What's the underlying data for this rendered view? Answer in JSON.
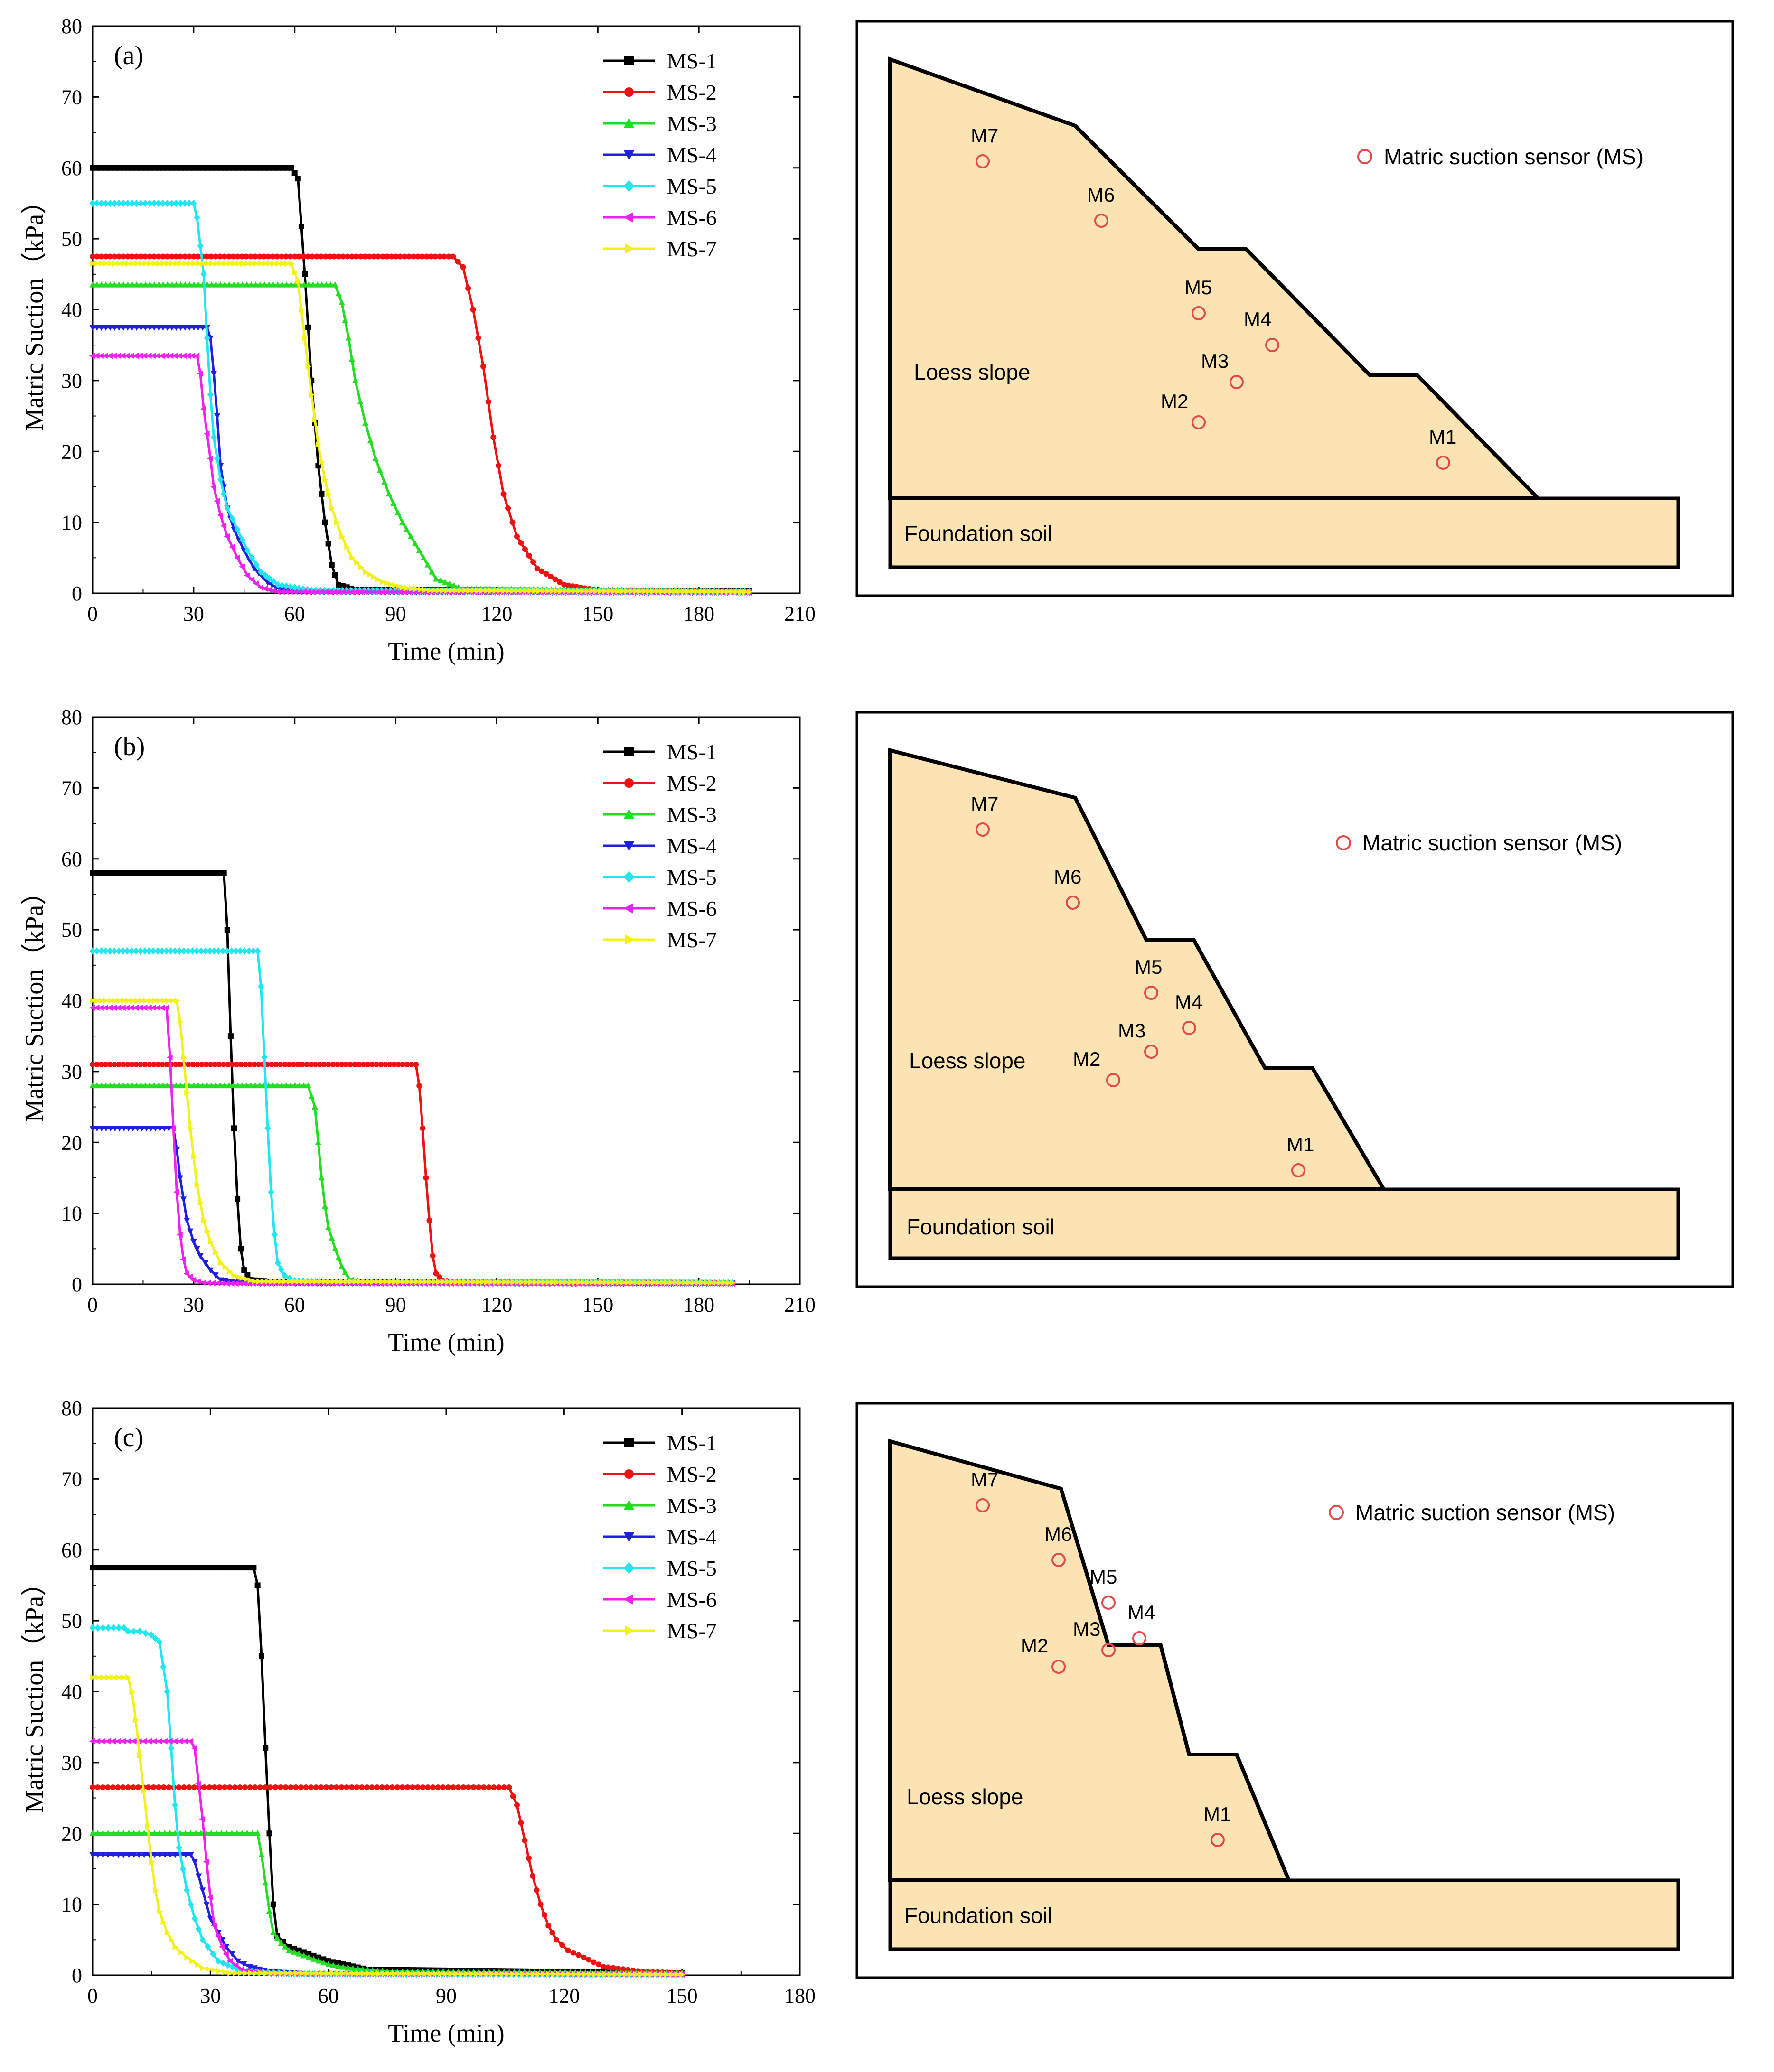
{
  "series_meta": [
    {
      "name": "MS-1",
      "color": "#000000",
      "marker": "square"
    },
    {
      "name": "MS-2",
      "color": "#ee1111",
      "marker": "circle"
    },
    {
      "name": "MS-3",
      "color": "#22dd22",
      "marker": "triangle-up"
    },
    {
      "name": "MS-4",
      "color": "#1f1fe0",
      "marker": "triangle-down"
    },
    {
      "name": "MS-5",
      "color": "#1fe6f0",
      "marker": "diamond"
    },
    {
      "name": "MS-6",
      "color": "#ee22ee",
      "marker": "left-triangle"
    },
    {
      "name": "MS-7",
      "color": "#f2f21a",
      "marker": "right-triangle"
    }
  ],
  "chart_data": [
    {
      "type": "line",
      "panel_label": "(a)",
      "xlabel": "Time (min)",
      "ylabel": "Matric Suction（kPa）",
      "xlim": [
        0,
        210
      ],
      "ylim": [
        0,
        80
      ],
      "xticks": [
        0,
        30,
        60,
        90,
        120,
        150,
        180,
        210
      ],
      "yticks": [
        0,
        10,
        20,
        30,
        40,
        50,
        60,
        70,
        80
      ],
      "legend": "top-right",
      "series": [
        {
          "name": "MS-1",
          "x": [
            0,
            59,
            61,
            63,
            65,
            67,
            69,
            71,
            73,
            78,
            195
          ],
          "values": [
            60.0,
            60.0,
            58.5,
            45,
            30,
            18,
            10,
            4,
            1.2,
            0.5,
            0.3
          ]
        },
        {
          "name": "MS-2",
          "x": [
            0,
            107,
            110,
            113,
            116,
            119,
            122,
            126,
            132,
            140,
            150,
            195
          ],
          "values": [
            47.5,
            47.5,
            46,
            40,
            32,
            22,
            14,
            8,
            3.5,
            1.2,
            0.4,
            0.2
          ]
        },
        {
          "name": "MS-3",
          "x": [
            0,
            72,
            74,
            76,
            78,
            81,
            84,
            88,
            92,
            97,
            102,
            110,
            195
          ],
          "values": [
            43.5,
            43.5,
            41,
            36,
            30,
            24,
            19,
            14,
            10,
            6,
            2,
            0.6,
            0.3
          ]
        },
        {
          "name": "MS-4",
          "x": [
            0,
            34,
            35,
            36,
            37,
            38,
            40,
            42,
            45,
            48,
            52,
            56,
            65,
            195
          ],
          "values": [
            37.5,
            37.5,
            36,
            31,
            25,
            18,
            12,
            9,
            6,
            3.5,
            1.5,
            0.5,
            0.2,
            0.1
          ]
        },
        {
          "name": "MS-5",
          "x": [
            0,
            30,
            31,
            33,
            34,
            35,
            36,
            38,
            40,
            43,
            46,
            50,
            55,
            65,
            195
          ],
          "values": [
            55.0,
            55.0,
            53,
            45,
            36,
            28,
            22,
            16,
            12,
            9,
            6,
            3,
            1.2,
            0.4,
            0.2
          ]
        },
        {
          "name": "MS-6",
          "x": [
            0,
            31,
            32,
            33,
            35,
            36,
            38,
            40,
            43,
            46,
            50,
            55,
            195
          ],
          "values": [
            33.5,
            33.5,
            31,
            26,
            19,
            15,
            11,
            8,
            5,
            2.5,
            0.8,
            0.2,
            0.1
          ]
        },
        {
          "name": "MS-7",
          "x": [
            0,
            59,
            61,
            63,
            65,
            67,
            69,
            71,
            74,
            77,
            81,
            86,
            92,
            100,
            195
          ],
          "values": [
            46.5,
            46.5,
            44,
            36,
            28,
            21,
            16,
            12,
            8,
            5,
            3,
            1.6,
            0.8,
            0.4,
            0.2
          ]
        }
      ]
    },
    {
      "type": "line",
      "panel_label": "(b)",
      "xlabel": "Time (min)",
      "ylabel": "Matric Suction（kPa）",
      "xlim": [
        0,
        210
      ],
      "ylim": [
        0,
        80
      ],
      "xticks": [
        0,
        30,
        60,
        90,
        120,
        150,
        180,
        210
      ],
      "yticks": [
        0,
        10,
        20,
        30,
        40,
        50,
        60,
        70,
        80
      ],
      "legend": "top-right",
      "series": [
        {
          "name": "MS-1",
          "x": [
            0,
            39,
            40,
            41,
            42,
            43,
            44,
            45,
            47,
            55,
            190
          ],
          "values": [
            58.0,
            58.0,
            50,
            35,
            22,
            12,
            5,
            2,
            0.6,
            0.3,
            0.2
          ]
        },
        {
          "name": "MS-2",
          "x": [
            0,
            96,
            97,
            98,
            99,
            100,
            101,
            102,
            104,
            110,
            190
          ],
          "values": [
            31.0,
            31.0,
            28,
            22,
            15,
            9,
            4,
            1.5,
            0.5,
            0.3,
            0.2
          ]
        },
        {
          "name": "MS-3",
          "x": [
            0,
            64,
            66,
            67,
            68,
            69,
            70,
            72,
            74,
            76,
            80,
            190
          ],
          "values": [
            28.0,
            28.0,
            25,
            20,
            15,
            11,
            8,
            5,
            2.5,
            0.8,
            0.3,
            0.2
          ]
        },
        {
          "name": "MS-4",
          "x": [
            0,
            24,
            25,
            26,
            27,
            28,
            30,
            32,
            35,
            38,
            45,
            190
          ],
          "values": [
            22.0,
            22.0,
            19,
            15,
            12,
            9,
            6,
            4,
            2,
            0.6,
            0.2,
            0.1
          ]
        },
        {
          "name": "MS-5",
          "x": [
            0,
            49,
            50,
            51,
            52,
            53,
            54,
            55,
            57,
            60,
            70,
            190
          ],
          "values": [
            47.0,
            47.0,
            42,
            32,
            22,
            13,
            7,
            3,
            1.2,
            0.5,
            0.3,
            0.2
          ]
        },
        {
          "name": "MS-6",
          "x": [
            0,
            22,
            23,
            24,
            25,
            26,
            27,
            28,
            30,
            33,
            40,
            190
          ],
          "values": [
            39.0,
            39.0,
            32,
            22,
            13,
            7,
            3.5,
            1.5,
            0.6,
            0.2,
            0.1,
            0.1
          ]
        },
        {
          "name": "MS-7",
          "x": [
            0,
            25,
            26,
            27,
            28,
            29,
            30,
            31,
            33,
            35,
            38,
            42,
            48,
            190
          ],
          "values": [
            40.0,
            40.0,
            37,
            32,
            27,
            22,
            18,
            14,
            9,
            6,
            3,
            1.2,
            0.4,
            0.2
          ]
        }
      ]
    },
    {
      "type": "line",
      "panel_label": "(c)",
      "xlabel": "Time (min)",
      "ylabel": "Matric Suction（kPa）",
      "xlim": [
        0,
        180
      ],
      "ylim": [
        0,
        80
      ],
      "xticks": [
        0,
        30,
        60,
        90,
        120,
        150,
        180
      ],
      "yticks": [
        0,
        10,
        20,
        30,
        40,
        50,
        60,
        70,
        80
      ],
      "legend": "top-right",
      "series": [
        {
          "name": "MS-1",
          "x": [
            0,
            41,
            42,
            43,
            44,
            45,
            46,
            47,
            50,
            55,
            60,
            70,
            150
          ],
          "values": [
            57.5,
            57.5,
            55,
            45,
            32,
            20,
            10,
            5.5,
            4,
            3,
            2,
            0.8,
            0.3
          ]
        },
        {
          "name": "MS-2",
          "x": [
            0,
            106,
            108,
            110,
            112,
            114,
            116,
            118,
            121,
            125,
            130,
            140,
            150
          ],
          "values": [
            26.5,
            26.5,
            24,
            19,
            14,
            10,
            7,
            5,
            3.5,
            2.5,
            1.2,
            0.5,
            0.3
          ]
        },
        {
          "name": "MS-3",
          "x": [
            0,
            42,
            43,
            44,
            45,
            46,
            48,
            50,
            55,
            60,
            65,
            75,
            150
          ],
          "values": [
            20.0,
            20.0,
            17,
            13,
            9,
            6,
            4.5,
            3.5,
            2.5,
            1.5,
            1,
            0.5,
            0.3
          ]
        },
        {
          "name": "MS-4",
          "x": [
            0,
            25,
            26,
            27,
            28,
            29,
            30,
            32,
            34,
            37,
            40,
            45,
            55,
            150
          ],
          "values": [
            17.0,
            17.0,
            16,
            14,
            12,
            10,
            8,
            6,
            4,
            2,
            1.2,
            0.5,
            0.2,
            0.1
          ]
        },
        {
          "name": "MS-5",
          "x": [
            0,
            8,
            9,
            12,
            15,
            17,
            19,
            20,
            21,
            22,
            24,
            26,
            28,
            32,
            38,
            50,
            150
          ],
          "values": [
            49.0,
            49.0,
            48.5,
            48.5,
            48,
            47,
            40,
            32,
            24,
            18,
            12,
            8,
            5,
            2,
            0.6,
            0.2,
            0.1
          ]
        },
        {
          "name": "MS-6",
          "x": [
            0,
            25,
            26,
            27,
            28,
            29,
            30,
            31,
            33,
            35,
            38,
            45,
            150
          ],
          "values": [
            33.0,
            33.0,
            32,
            27,
            22,
            16,
            11,
            7,
            4,
            2,
            0.8,
            0.2,
            0.1
          ]
        },
        {
          "name": "MS-7",
          "x": [
            0,
            9,
            10,
            11,
            12,
            13,
            14,
            15,
            16,
            17,
            19,
            21,
            24,
            28,
            35,
            150
          ],
          "values": [
            42.0,
            42.0,
            40,
            36,
            31,
            26,
            21,
            16,
            12,
            9,
            6,
            4,
            2.5,
            1,
            0.3,
            0.1
          ]
        }
      ]
    }
  ],
  "slopes": [
    {
      "legend_label": "Matric suction sensor (MS)",
      "slope_label": "Loess slope",
      "foundation_label": "Foundation soil",
      "sensors": [
        {
          "name": "M7"
        },
        {
          "name": "M6"
        },
        {
          "name": "M5"
        },
        {
          "name": "M4"
        },
        {
          "name": "M3"
        },
        {
          "name": "M2"
        },
        {
          "name": "M1"
        }
      ]
    },
    {
      "legend_label": "Matric suction sensor (MS)",
      "slope_label": "Loess slope",
      "foundation_label": "Foundation soil",
      "sensors": [
        {
          "name": "M7"
        },
        {
          "name": "M6"
        },
        {
          "name": "M5"
        },
        {
          "name": "M4"
        },
        {
          "name": "M3"
        },
        {
          "name": "M2"
        },
        {
          "name": "M1"
        }
      ]
    },
    {
      "legend_label": "Matric suction sensor (MS)",
      "slope_label": "Loess slope",
      "foundation_label": "Foundation soil",
      "sensors": [
        {
          "name": "M7"
        },
        {
          "name": "M6"
        },
        {
          "name": "M5"
        },
        {
          "name": "M4"
        },
        {
          "name": "M3"
        },
        {
          "name": "M2"
        },
        {
          "name": "M1"
        }
      ]
    }
  ],
  "colors": {
    "soil_fill": "#fbe3b4",
    "sensor_stroke": "#e34a4a",
    "outline": "#000000"
  }
}
